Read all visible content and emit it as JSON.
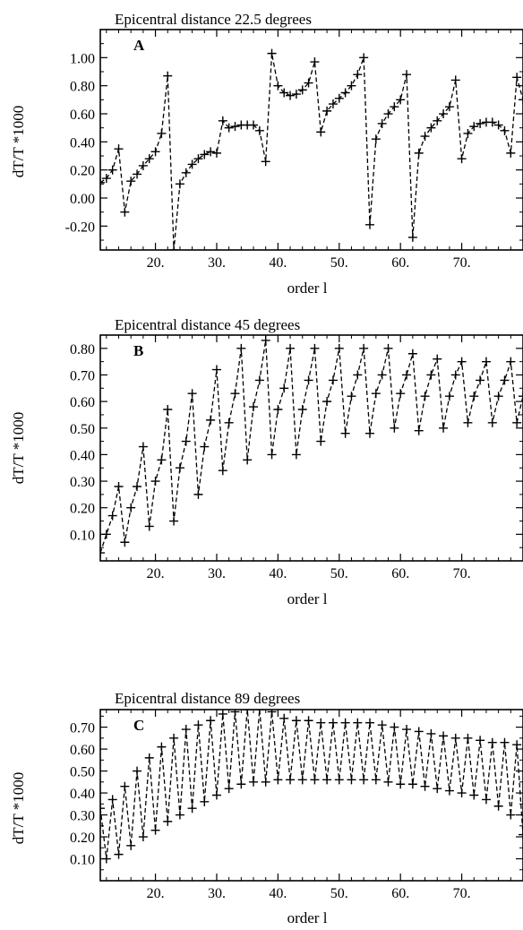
{
  "chart_data": [
    {
      "type": "line",
      "panel_label": "A",
      "title": "Epicentral distance 22.5 degrees",
      "xlabel": "order l",
      "ylabel": "dT/T *1000",
      "xlim": [
        11,
        80
      ],
      "ylim": [
        -0.37,
        1.2
      ],
      "x_ticks": [
        20,
        30,
        40,
        50,
        60,
        70
      ],
      "x_tick_labels": [
        "20.",
        "30.",
        "40.",
        "50.",
        "60.",
        "70."
      ],
      "y_ticks": [
        1.0,
        0.8,
        0.6,
        0.4,
        0.2,
        0.0,
        -0.2
      ],
      "y_tick_labels": [
        "1.00",
        "0.80",
        "0.60",
        "0.40",
        "0.20",
        "0.00",
        "-0.20"
      ],
      "marker": "+",
      "line_style": "dashed",
      "grid": false,
      "series": [
        {
          "x": [
            11,
            12,
            13,
            14,
            15,
            16,
            17,
            18,
            19,
            20,
            21,
            22,
            23,
            24,
            25,
            26,
            27,
            28,
            29,
            30,
            31,
            32,
            33,
            34,
            35,
            36,
            37,
            38,
            39,
            40,
            41,
            42,
            43,
            44,
            45,
            46,
            47,
            48,
            49,
            50,
            51,
            52,
            53,
            54,
            55,
            56,
            57,
            58,
            59,
            60,
            61,
            62,
            63,
            64,
            65,
            66,
            67,
            68,
            69,
            70,
            71,
            72,
            73,
            74,
            75,
            76,
            77,
            78,
            79,
            80
          ],
          "y": [
            0.11,
            0.14,
            0.2,
            0.35,
            -0.1,
            0.12,
            0.17,
            0.23,
            0.28,
            0.33,
            0.46,
            0.87,
            -0.37,
            0.1,
            0.18,
            0.24,
            0.28,
            0.31,
            0.33,
            0.32,
            0.55,
            0.5,
            0.51,
            0.52,
            0.52,
            0.52,
            0.48,
            0.26,
            1.03,
            0.8,
            0.75,
            0.73,
            0.74,
            0.77,
            0.82,
            0.97,
            0.47,
            0.62,
            0.67,
            0.71,
            0.75,
            0.8,
            0.88,
            1.0,
            -0.19,
            0.42,
            0.53,
            0.6,
            0.65,
            0.7,
            0.88,
            -0.28,
            0.32,
            0.44,
            0.5,
            0.55,
            0.6,
            0.65,
            0.84,
            0.28,
            0.46,
            0.51,
            0.53,
            0.54,
            0.54,
            0.52,
            0.48,
            0.32,
            0.86,
            0.7
          ]
        }
      ]
    },
    {
      "type": "line",
      "panel_label": "B",
      "title": "Epicentral distance 45 degrees",
      "xlabel": "order l",
      "ylabel": "dT/T *1000",
      "xlim": [
        11,
        80
      ],
      "ylim": [
        0.0,
        0.85
      ],
      "x_ticks": [
        20,
        30,
        40,
        50,
        60,
        70
      ],
      "x_tick_labels": [
        "20.",
        "30.",
        "40.",
        "50.",
        "60.",
        "70."
      ],
      "y_ticks": [
        0.8,
        0.7,
        0.6,
        0.5,
        0.4,
        0.3,
        0.2,
        0.1
      ],
      "y_tick_labels": [
        "0.80",
        "0.70",
        "0.60",
        "0.50",
        "0.40",
        "0.30",
        "0.20",
        "0.10"
      ],
      "marker": "+",
      "line_style": "dashed",
      "grid": false,
      "series": [
        {
          "x": [
            11,
            12,
            13,
            14,
            15,
            16,
            17,
            18,
            19,
            20,
            21,
            22,
            23,
            24,
            25,
            26,
            27,
            28,
            29,
            30,
            31,
            32,
            33,
            34,
            35,
            36,
            37,
            38,
            39,
            40,
            41,
            42,
            43,
            44,
            45,
            46,
            47,
            48,
            49,
            50,
            51,
            52,
            53,
            54,
            55,
            56,
            57,
            58,
            59,
            60,
            61,
            62,
            63,
            64,
            65,
            66,
            67,
            68,
            69,
            70,
            71,
            72,
            73,
            74,
            75,
            76,
            77,
            78,
            79,
            80
          ],
          "y": [
            0.03,
            0.1,
            0.17,
            0.28,
            0.07,
            0.2,
            0.28,
            0.43,
            0.13,
            0.3,
            0.38,
            0.57,
            0.15,
            0.35,
            0.45,
            0.63,
            0.25,
            0.43,
            0.53,
            0.72,
            0.34,
            0.52,
            0.63,
            0.8,
            0.38,
            0.58,
            0.68,
            0.83,
            0.4,
            0.57,
            0.65,
            0.8,
            0.4,
            0.57,
            0.68,
            0.8,
            0.45,
            0.6,
            0.68,
            0.8,
            0.48,
            0.62,
            0.7,
            0.8,
            0.48,
            0.63,
            0.7,
            0.8,
            0.5,
            0.63,
            0.7,
            0.78,
            0.49,
            0.62,
            0.7,
            0.76,
            0.5,
            0.62,
            0.7,
            0.75,
            0.52,
            0.62,
            0.68,
            0.75,
            0.52,
            0.62,
            0.68,
            0.75,
            0.52,
            0.62
          ]
        }
      ]
    },
    {
      "type": "line",
      "panel_label": "C",
      "title": "Epicentral distance 89 degrees",
      "xlabel": "order l",
      "ylabel": "dT/T *1000",
      "xlim": [
        11,
        80
      ],
      "ylim": [
        0.0,
        0.78
      ],
      "x_ticks": [
        20,
        30,
        40,
        50,
        60,
        70
      ],
      "x_tick_labels": [
        "20.",
        "30.",
        "40.",
        "50.",
        "60.",
        "70."
      ],
      "y_ticks": [
        0.7,
        0.6,
        0.5,
        0.4,
        0.3,
        0.2,
        0.1
      ],
      "y_tick_labels": [
        "0.70",
        "0.60",
        "0.50",
        "0.40",
        "0.30",
        "0.20",
        "0.10"
      ],
      "marker": "+",
      "line_style": "dashed",
      "grid": false,
      "series": [
        {
          "x": [
            11,
            12,
            13,
            14,
            15,
            16,
            17,
            18,
            19,
            20,
            21,
            22,
            23,
            24,
            25,
            26,
            27,
            28,
            29,
            30,
            31,
            32,
            33,
            34,
            35,
            36,
            37,
            38,
            39,
            40,
            41,
            42,
            43,
            44,
            45,
            46,
            47,
            48,
            49,
            50,
            51,
            52,
            53,
            54,
            55,
            56,
            57,
            58,
            59,
            60,
            61,
            62,
            63,
            64,
            65,
            66,
            67,
            68,
            69,
            70,
            71,
            72,
            73,
            74,
            75,
            76,
            77,
            78,
            79,
            80
          ],
          "y": [
            0.33,
            0.1,
            0.37,
            0.12,
            0.43,
            0.16,
            0.5,
            0.2,
            0.56,
            0.23,
            0.61,
            0.27,
            0.65,
            0.3,
            0.69,
            0.33,
            0.71,
            0.36,
            0.73,
            0.39,
            0.76,
            0.42,
            0.77,
            0.44,
            0.78,
            0.45,
            0.78,
            0.45,
            0.77,
            0.46,
            0.74,
            0.46,
            0.73,
            0.46,
            0.73,
            0.46,
            0.72,
            0.46,
            0.72,
            0.46,
            0.72,
            0.46,
            0.72,
            0.46,
            0.72,
            0.46,
            0.71,
            0.45,
            0.7,
            0.44,
            0.69,
            0.44,
            0.68,
            0.43,
            0.67,
            0.42,
            0.66,
            0.41,
            0.65,
            0.4,
            0.65,
            0.39,
            0.64,
            0.37,
            0.63,
            0.34,
            0.63,
            0.3,
            0.62,
            0.21
          ]
        }
      ]
    }
  ]
}
